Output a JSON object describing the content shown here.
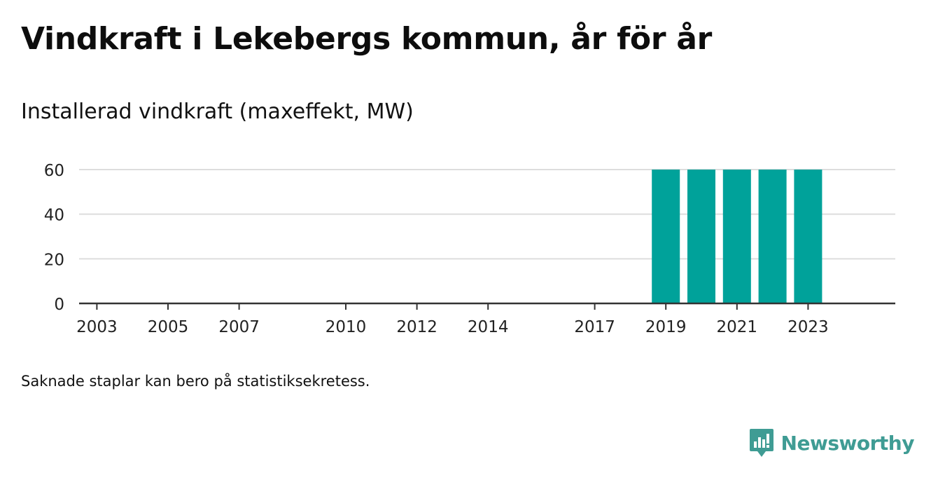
{
  "header": {
    "title": "Vindkraft i Lekebergs kommun, år för år",
    "subtitle": "Installerad vindkraft (maxeffekt, MW)"
  },
  "footer": {
    "note": "Saknade staplar kan bero på statistiksekretess.",
    "brand": "Newsworthy"
  },
  "colors": {
    "bar": "#00a29a",
    "grid": "#dddddd",
    "axis": "#333333",
    "brand": "#3f9c94"
  },
  "chart_data": {
    "type": "bar",
    "title": "Vindkraft i Lekebergs kommun, år för år",
    "subtitle": "Installerad vindkraft (maxeffekt, MW)",
    "x": [
      2002,
      2003,
      2004,
      2005,
      2006,
      2007,
      2008,
      2009,
      2010,
      2011,
      2012,
      2013,
      2014,
      2015,
      2016,
      2017,
      2018,
      2019,
      2020,
      2021,
      2022,
      2023,
      2024
    ],
    "values": [
      null,
      null,
      null,
      null,
      null,
      null,
      null,
      null,
      null,
      null,
      null,
      null,
      null,
      null,
      null,
      null,
      null,
      60,
      60,
      60,
      60,
      60,
      null
    ],
    "x_tick_labels": [
      "2003",
      "2005",
      "2007",
      "2010",
      "2012",
      "2014",
      "2017",
      "2019",
      "2021",
      "2023"
    ],
    "x_tick_values": [
      2003,
      2005,
      2007,
      2010,
      2012,
      2014,
      2017,
      2019,
      2021,
      2023
    ],
    "y_ticks": [
      0,
      20,
      40,
      60
    ],
    "ylim": [
      0,
      60
    ],
    "xlabel": "",
    "ylabel": "",
    "grid": true,
    "legend": "none"
  }
}
